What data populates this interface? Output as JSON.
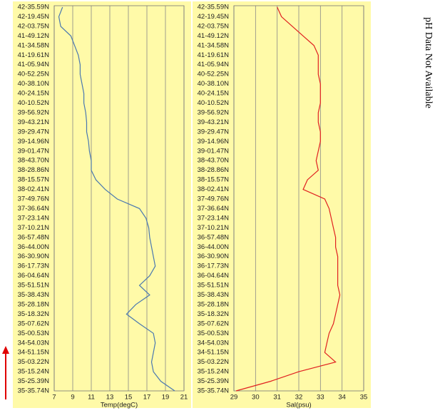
{
  "annotation": "pH Data Not Available",
  "chart_data": [
    {
      "type": "line",
      "x_label": "Temp(degC)",
      "categories": [
        "42-35.59N",
        "42-19.45N",
        "42-03.75N",
        "41-49.12N",
        "41-34.58N",
        "41-19.61N",
        "41-05.94N",
        "40-52.25N",
        "40-38.10N",
        "40-24.15N",
        "40-10.52N",
        "39-56.92N",
        "39-43.21N",
        "39-29.47N",
        "39-14.96N",
        "39-01.47N",
        "38-43.70N",
        "38-28.86N",
        "38-15.57N",
        "38-02.41N",
        "37-49.76N",
        "37-36.64N",
        "37-23.14N",
        "37-10.21N",
        "36-57.48N",
        "36-44.00N",
        "36-30.90N",
        "36-17.73N",
        "36-04.64N",
        "35-51.51N",
        "35-38.43N",
        "35-28.18N",
        "35-18.32N",
        "35-07.62N",
        "35-00.53N",
        "34-54.03N",
        "34-51.15N",
        "35-03.22N",
        "35-15.24N",
        "35-25.39N",
        "35-35.74N"
      ],
      "series": [
        {
          "color": "#4a78b0",
          "values": [
            7.9,
            7.5,
            7.7,
            8.8,
            9.2,
            9.6,
            9.8,
            9.8,
            10.0,
            10.2,
            10.2,
            10.4,
            10.5,
            10.5,
            10.7,
            10.8,
            11.0,
            11.0,
            11.5,
            12.5,
            13.8,
            16.2,
            16.9,
            17.2,
            17.3,
            17.5,
            17.7,
            17.9,
            17.3,
            16.2,
            17.3,
            15.8,
            14.8,
            16.2,
            17.7,
            17.9,
            17.7,
            17.5,
            17.7,
            18.5,
            20.0
          ]
        }
      ],
      "xlim": [
        7,
        21
      ],
      "xticks": [
        7,
        9,
        11,
        13,
        15,
        17,
        19,
        21
      ],
      "grid": true
    },
    {
      "type": "line",
      "x_label": "Sal(psu)",
      "categories": [
        "42-35.59N",
        "42-19.45N",
        "42-03.75N",
        "41-49.12N",
        "41-34.58N",
        "41-19.61N",
        "41-05.94N",
        "40-52.25N",
        "40-38.10N",
        "40-24.15N",
        "40-10.52N",
        "39-56.92N",
        "39-43.21N",
        "39-29.47N",
        "39-14.96N",
        "39-01.47N",
        "38-43.70N",
        "38-28.86N",
        "38-15.57N",
        "38-02.41N",
        "37-49.76N",
        "37-36.64N",
        "37-23.14N",
        "37-10.21N",
        "36-57.48N",
        "36-44.00N",
        "36-30.90N",
        "36-17.73N",
        "36-04.64N",
        "35-51.51N",
        "35-38.43N",
        "35-28.18N",
        "35-18.32N",
        "35-07.62N",
        "35-00.53N",
        "34-54.03N",
        "34-51.15N",
        "35-03.22N",
        "35-15.24N",
        "35-25.39N",
        "35-35.74N"
      ],
      "series": [
        {
          "color": "#e02020",
          "values": [
            31.0,
            31.2,
            31.7,
            32.2,
            32.7,
            32.9,
            32.9,
            32.9,
            33.0,
            33.0,
            33.0,
            32.9,
            32.9,
            33.0,
            33.0,
            32.9,
            32.8,
            32.9,
            32.4,
            32.2,
            33.2,
            33.4,
            33.5,
            33.6,
            33.7,
            33.7,
            33.8,
            33.8,
            33.8,
            33.8,
            33.9,
            33.8,
            33.7,
            33.6,
            33.4,
            33.3,
            33.2,
            33.7,
            32.0,
            30.7,
            29.1
          ]
        }
      ],
      "xlim": [
        29,
        35
      ],
      "xticks": [
        29,
        30,
        31,
        32,
        33,
        34,
        35
      ],
      "grid": true
    }
  ]
}
